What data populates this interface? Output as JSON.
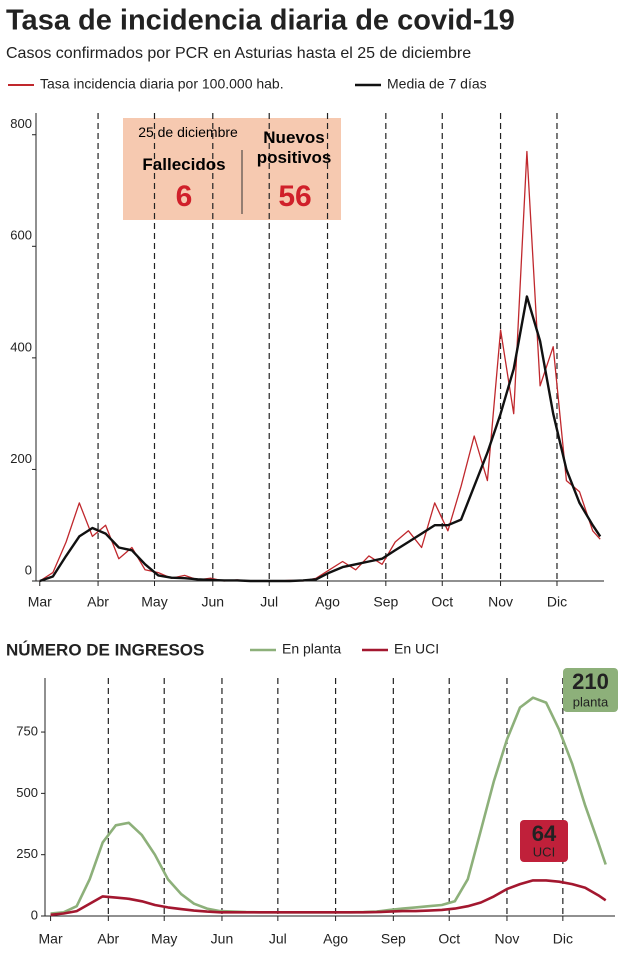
{
  "chart_data": [
    {
      "type": "line",
      "title": "Tasa de incidencia diaria de covid-19",
      "subtitle": "Casos confirmados por PCR en Asturias hasta el 25 de diciembre",
      "callout": {
        "date": "25 de diciembre",
        "items": [
          {
            "label": "Fallecidos",
            "value": 6
          },
          {
            "label": "Nuevos positivos",
            "value": 56
          }
        ]
      },
      "x": [
        0,
        7,
        14,
        21,
        28,
        35,
        42,
        49,
        56,
        63,
        70,
        77,
        84,
        91,
        98,
        105,
        112,
        119,
        126,
        133,
        140,
        147,
        154,
        161,
        168,
        175,
        182,
        189,
        196,
        203,
        210,
        217,
        224,
        231,
        238,
        245,
        252,
        259,
        266,
        273,
        280,
        287,
        294,
        298
      ],
      "series": [
        {
          "name": "Tasa incidencia diaria por 100.000 hab.",
          "color": "#c0282d",
          "width": 1.3,
          "values": [
            0,
            15,
            70,
            140,
            80,
            100,
            40,
            60,
            20,
            15,
            5,
            10,
            2,
            5,
            0,
            2,
            0,
            0,
            0,
            1,
            0,
            5,
            20,
            35,
            20,
            45,
            30,
            70,
            90,
            60,
            140,
            90,
            170,
            260,
            180,
            450,
            300,
            770,
            350,
            420,
            180,
            160,
            90,
            75
          ]
        },
        {
          "name": "Media de 7 días",
          "color": "#111111",
          "width": 2.4,
          "values": [
            0,
            8,
            45,
            80,
            95,
            85,
            60,
            55,
            30,
            10,
            6,
            5,
            3,
            2,
            1,
            1,
            0,
            0,
            0,
            0,
            1,
            3,
            15,
            25,
            30,
            35,
            40,
            55,
            70,
            85,
            100,
            100,
            110,
            170,
            230,
            300,
            380,
            510,
            430,
            300,
            200,
            140,
            100,
            80
          ]
        }
      ],
      "xlim": [
        -2,
        300
      ],
      "xticks": [
        {
          "value": 0,
          "label": "Mar"
        },
        {
          "value": 31,
          "label": "Abr"
        },
        {
          "value": 61,
          "label": "May"
        },
        {
          "value": 92,
          "label": "Jun"
        },
        {
          "value": 122,
          "label": "Jul"
        },
        {
          "value": 153,
          "label": "Ago"
        },
        {
          "value": 184,
          "label": "Sep"
        },
        {
          "value": 214,
          "label": "Oct"
        },
        {
          "value": 245,
          "label": "Nov"
        },
        {
          "value": 275,
          "label": "Dic"
        }
      ],
      "ylim": [
        0,
        830
      ],
      "yticks": [
        0,
        200,
        400,
        600,
        800
      ],
      "grid": "x"
    },
    {
      "type": "line",
      "title": "NÚMERO DE INGRESOS",
      "x": [
        0,
        7,
        14,
        21,
        28,
        35,
        42,
        49,
        56,
        63,
        70,
        77,
        84,
        91,
        98,
        105,
        112,
        119,
        126,
        133,
        140,
        147,
        154,
        161,
        168,
        175,
        182,
        189,
        196,
        203,
        210,
        217,
        224,
        231,
        238,
        245,
        252,
        259,
        266,
        273,
        280,
        287,
        294,
        298
      ],
      "series": [
        {
          "name": "En planta",
          "color": "#8db07a",
          "width": 2.6,
          "values": [
            10,
            15,
            40,
            150,
            300,
            370,
            380,
            330,
            250,
            150,
            90,
            50,
            30,
            20,
            18,
            16,
            15,
            15,
            15,
            15,
            15,
            15,
            15,
            15,
            16,
            18,
            25,
            30,
            35,
            40,
            45,
            60,
            150,
            350,
            550,
            720,
            850,
            890,
            870,
            760,
            620,
            450,
            300,
            210
          ]
        },
        {
          "name": "En UCI",
          "color": "#a3172f",
          "width": 2.6,
          "values": [
            5,
            10,
            20,
            50,
            80,
            75,
            70,
            60,
            45,
            35,
            28,
            22,
            18,
            15,
            15,
            15,
            15,
            15,
            15,
            15,
            15,
            15,
            15,
            15,
            15,
            16,
            18,
            20,
            20,
            22,
            25,
            30,
            40,
            55,
            80,
            110,
            130,
            145,
            145,
            140,
            130,
            115,
            85,
            64
          ]
        }
      ],
      "annotations": [
        {
          "value": 210,
          "label": "planta",
          "color": "#8db07a"
        },
        {
          "value": 64,
          "label": "UCI",
          "color": "#c0203a"
        }
      ],
      "xlim": [
        -3,
        303
      ],
      "xticks": [
        {
          "value": 0,
          "label": "Mar"
        },
        {
          "value": 31,
          "label": "Abr"
        },
        {
          "value": 61,
          "label": "May"
        },
        {
          "value": 92,
          "label": "Jun"
        },
        {
          "value": 122,
          "label": "Jul"
        },
        {
          "value": 153,
          "label": "Ago"
        },
        {
          "value": 184,
          "label": "Sep"
        },
        {
          "value": 214,
          "label": "Oct"
        },
        {
          "value": 245,
          "label": "Nov"
        },
        {
          "value": 275,
          "label": "Dic"
        }
      ],
      "ylim": [
        0,
        950
      ],
      "yticks": [
        0,
        250,
        500,
        750
      ],
      "grid": "x"
    }
  ]
}
